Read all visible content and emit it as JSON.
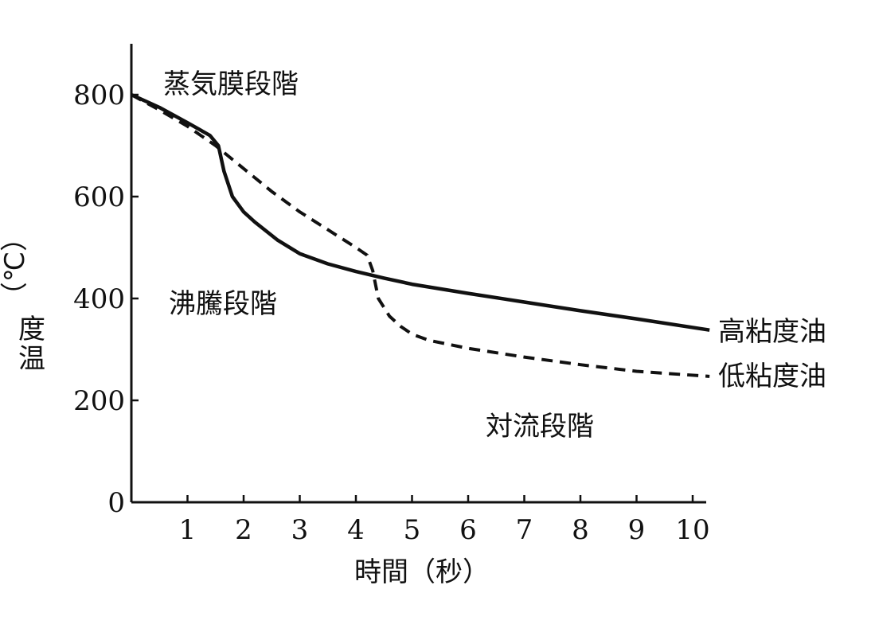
{
  "chart_data": {
    "type": "line",
    "xlabel": "時間（秒）",
    "ylabel": [
      "温",
      "度",
      "（℃）"
    ],
    "xlim": [
      0,
      10.3
    ],
    "ylim": [
      0,
      900
    ],
    "x_ticks": [
      "1",
      "2",
      "3",
      "4",
      "5",
      "6",
      "7",
      "8",
      "9",
      "10"
    ],
    "y_ticks": [
      "0",
      "200",
      "400",
      "600",
      "800"
    ],
    "grid": false,
    "annotations": [
      "蒸気膜段階",
      "沸騰段階",
      "対流段階"
    ],
    "series": [
      {
        "name": "高粘度油",
        "style": "solid",
        "x": [
          0,
          0.5,
          1.0,
          1.4,
          1.55,
          1.65,
          1.8,
          2.0,
          2.2,
          2.6,
          3.0,
          3.5,
          4.0,
          4.5,
          5.0,
          6.0,
          7.0,
          8.0,
          9.0,
          10.3
        ],
        "y": [
          800,
          775,
          745,
          720,
          700,
          650,
          600,
          570,
          550,
          515,
          488,
          468,
          453,
          440,
          428,
          410,
          393,
          376,
          360,
          338
        ]
      },
      {
        "name": "低粘度油",
        "style": "dashed",
        "x": [
          0,
          0.5,
          1.0,
          1.5,
          2.0,
          2.5,
          3.0,
          3.5,
          4.0,
          4.2,
          4.3,
          4.4,
          4.6,
          4.8,
          5.0,
          5.3,
          6.0,
          7.0,
          8.0,
          9.0,
          10.3
        ],
        "y": [
          800,
          770,
          738,
          700,
          655,
          610,
          570,
          535,
          500,
          485,
          455,
          400,
          365,
          345,
          330,
          318,
          302,
          285,
          270,
          257,
          247
        ]
      }
    ]
  }
}
